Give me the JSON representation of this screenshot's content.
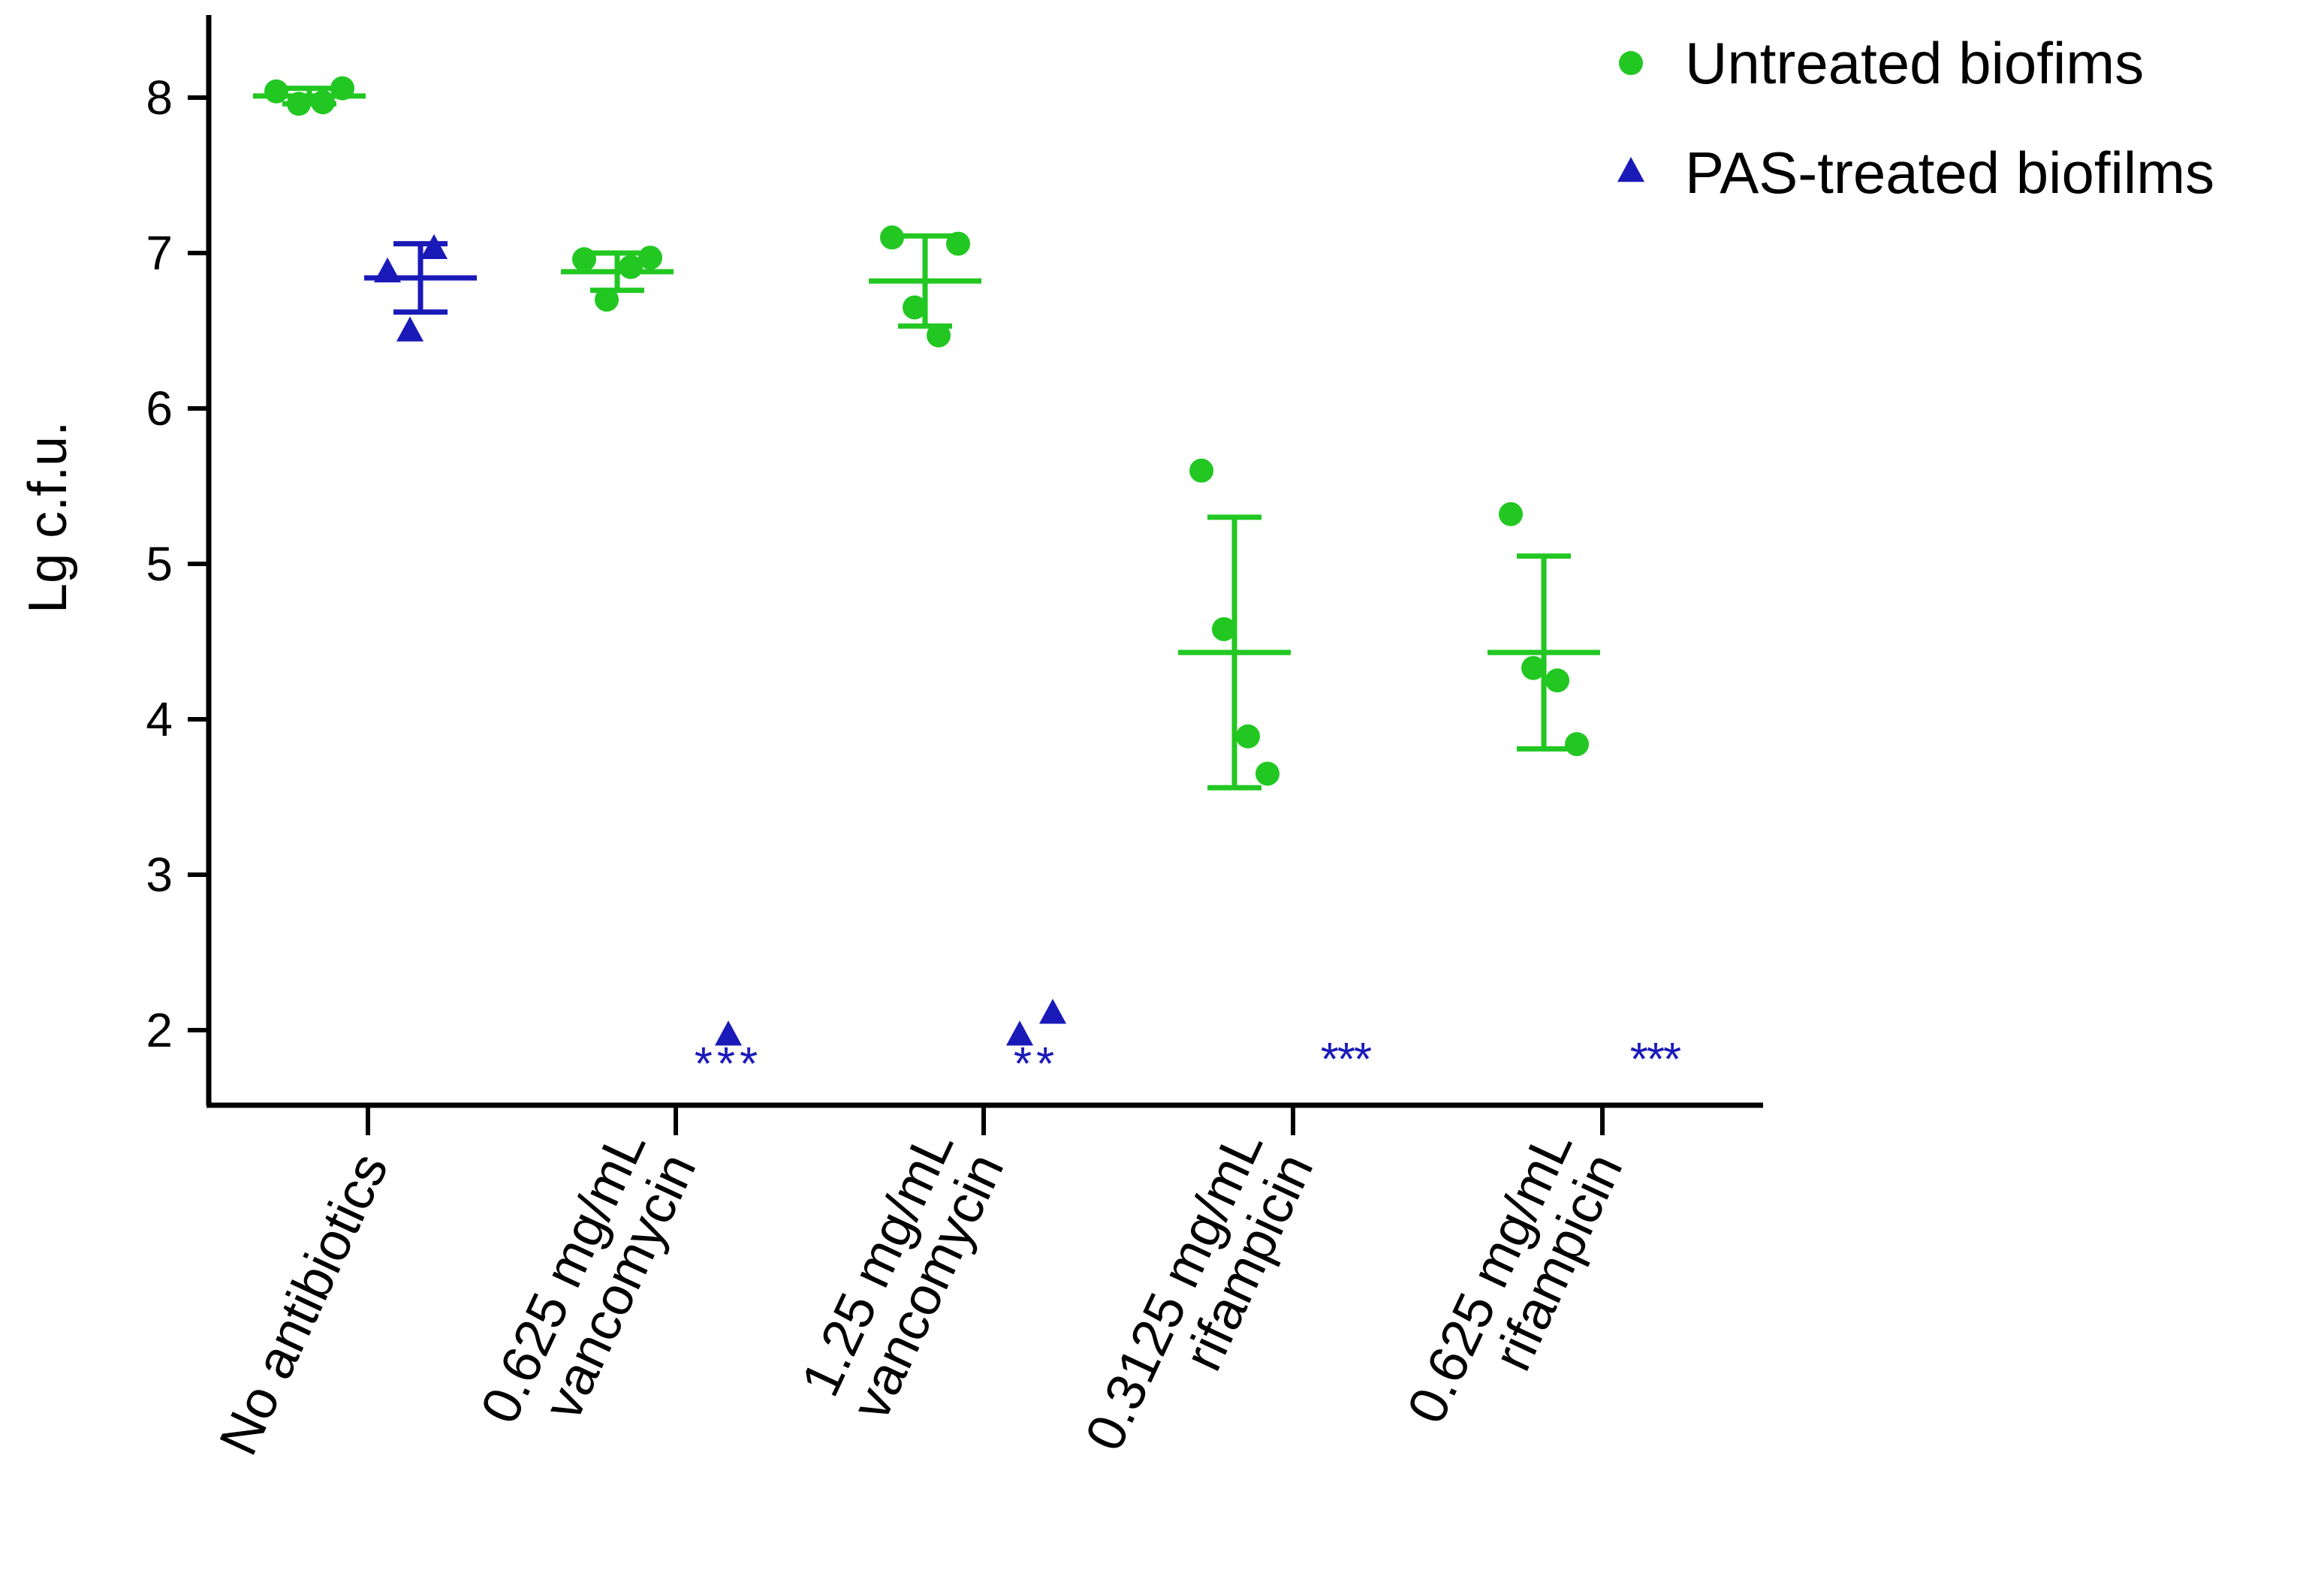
{
  "chart_data": {
    "type": "scatter",
    "title": "",
    "ylabel": "Lg c.f.u.",
    "xlabel": "",
    "ylim": [
      1.5,
      8.5
    ],
    "yticks": [
      2,
      3,
      4,
      5,
      6,
      7,
      8
    ],
    "grid": false,
    "legend_position": "top-right",
    "categories": [
      [
        "No antibiotics"
      ],
      [
        "0.625 mg/mL",
        "vancomycin"
      ],
      [
        "1.25 mg/mL",
        "vancomycin"
      ],
      [
        "0.3125 mg/mL",
        "rifampicin"
      ],
      [
        "0.625 mg/mL",
        "rifampicin"
      ]
    ],
    "series": [
      {
        "name": "Untreated biofims",
        "marker": "circle",
        "color": "#22c722",
        "groups": [
          {
            "category": 0,
            "points": [
              8.04,
              7.96,
              7.97,
              8.06
            ],
            "mean": 8.01,
            "sd": 0.05
          },
          {
            "category": 1,
            "points": [
              6.96,
              6.7,
              6.91,
              6.97
            ],
            "mean": 6.88,
            "sd": 0.12
          },
          {
            "category": 2,
            "points": [
              7.1,
              6.65,
              6.47,
              7.06
            ],
            "mean": 6.82,
            "sd": 0.29
          },
          {
            "category": 3,
            "points": [
              5.6,
              4.58,
              3.89,
              3.65
            ],
            "mean": 4.43,
            "sd": 0.87
          },
          {
            "category": 4,
            "points": [
              5.32,
              4.33,
              4.25,
              3.84
            ],
            "mean": 4.43,
            "sd": 0.62
          }
        ]
      },
      {
        "name": "PAS-treated biofilms",
        "marker": "triangle",
        "color": "#1a1ab8",
        "groups": [
          {
            "category": 0,
            "points": [
              6.88,
              6.5,
              7.03
            ],
            "mean": 6.84,
            "sd": 0.22
          },
          {
            "category": 1,
            "points": [
              1.97
            ],
            "mean": null,
            "sd": null
          },
          {
            "category": 2,
            "points": [
              1.97,
              2.11
            ],
            "mean": null,
            "sd": null
          },
          {
            "category": 3,
            "points": [],
            "mean": null,
            "sd": null
          },
          {
            "category": 4,
            "points": [],
            "mean": null,
            "sd": null
          }
        ]
      }
    ],
    "significance": [
      {
        "category": 1,
        "label": "***",
        "layout": "row"
      },
      {
        "category": 2,
        "label": "**",
        "layout": "row"
      },
      {
        "category": 3,
        "label": "***",
        "layout": "stack"
      },
      {
        "category": 4,
        "label": "***",
        "layout": "stack"
      }
    ],
    "significance_color": "#1a1ab8"
  }
}
